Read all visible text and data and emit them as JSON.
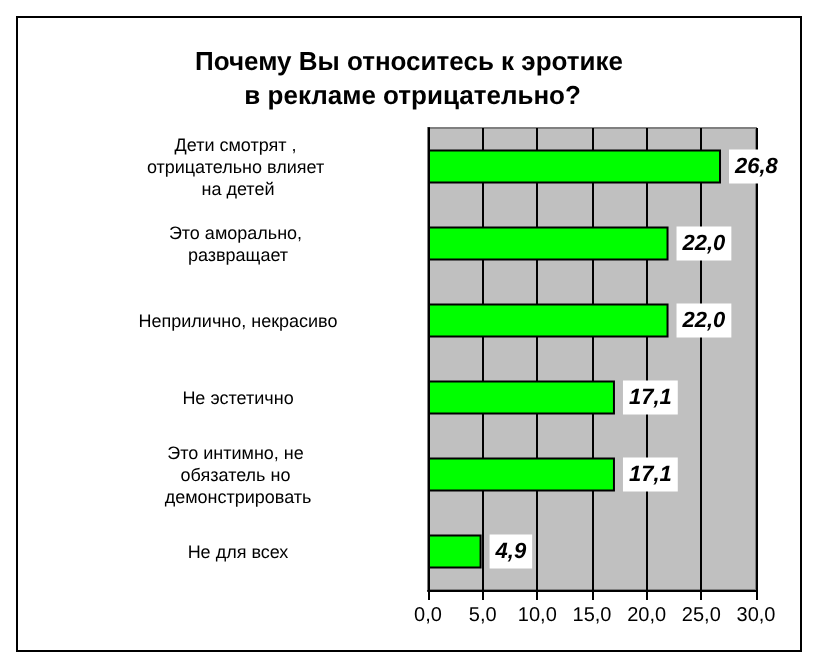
{
  "chart_data": {
    "type": "bar",
    "orientation": "horizontal",
    "title": "Почему Вы относитесь к эротике в рекламе отрицательно?",
    "categories": [
      "Дети смотрят , отрицательно влияет на детей",
      "Это аморально, развращает",
      "Неприлично, некрасиво",
      "Не эстетично",
      "Это интимно, не обязатель но демонстрировать",
      "Не для всех"
    ],
    "values": [
      26.8,
      22.0,
      22.0,
      17.1,
      17.1,
      4.9
    ],
    "value_labels": [
      "26,8",
      "22,0",
      "22,0",
      "17,1",
      "17,1",
      "4,9"
    ],
    "color": "#00ff00",
    "xlim": [
      0,
      30
    ],
    "xticks": [
      {
        "value": 0,
        "label": "0,0"
      },
      {
        "value": 5,
        "label": "5,0"
      },
      {
        "value": 10,
        "label": "10,0"
      },
      {
        "value": 15,
        "label": "15,0"
      },
      {
        "value": 20,
        "label": "20,0"
      },
      {
        "value": 25,
        "label": "25,0"
      },
      {
        "value": 30,
        "label": "30,0"
      }
    ],
    "grid": "x"
  }
}
